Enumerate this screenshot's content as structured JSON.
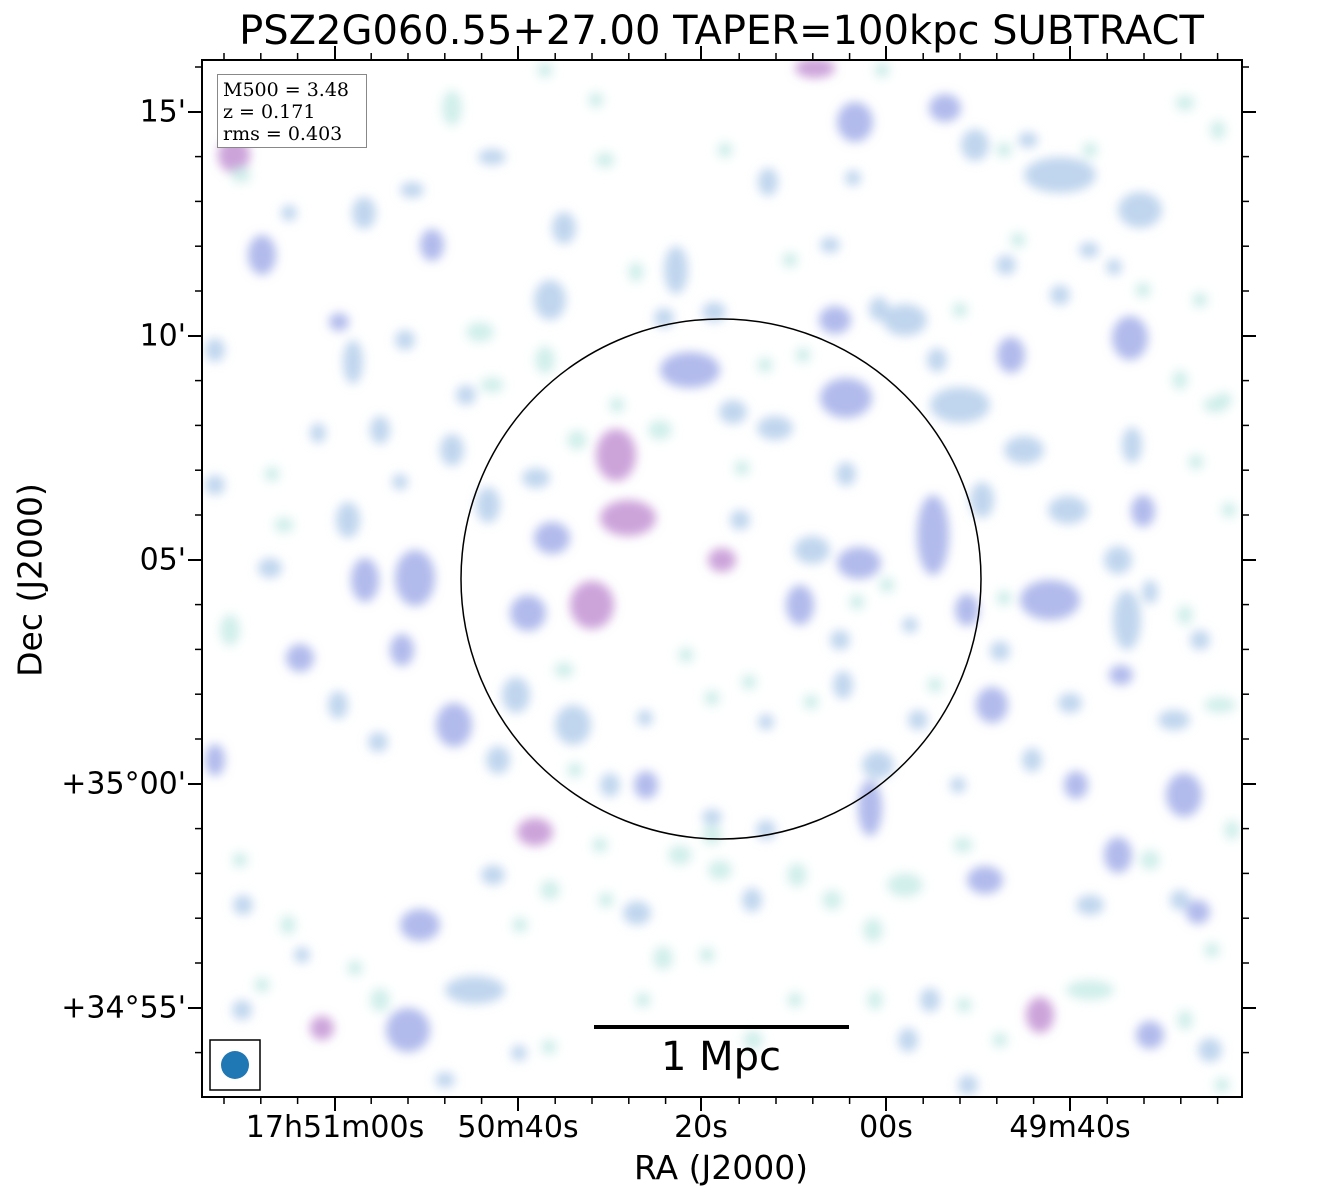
{
  "title": "PSZ2G060.55+27.00 TAPER=100kpc SUBTRACT",
  "axes": {
    "xlabel": "RA (J2000)",
    "ylabel": "Dec (J2000)",
    "x_ticks": [
      "17h51m00s",
      "50m40s",
      "20s",
      "00s",
      "49m40s"
    ],
    "y_ticks": [
      "15'",
      "10'",
      "05'",
      "+35°00'",
      "+34°55'"
    ]
  },
  "info": {
    "m500": "M500 = 3.48",
    "z": "z = 0.171",
    "rms": "rms = 0.403"
  },
  "scalebar": {
    "label": "1 Mpc"
  },
  "beam_color": "#1f77b4",
  "colors": {
    "faint": "#c9ece8",
    "low": "#b9d2ec",
    "mid": "#a9b4ea",
    "high": "#c79ad6"
  }
}
